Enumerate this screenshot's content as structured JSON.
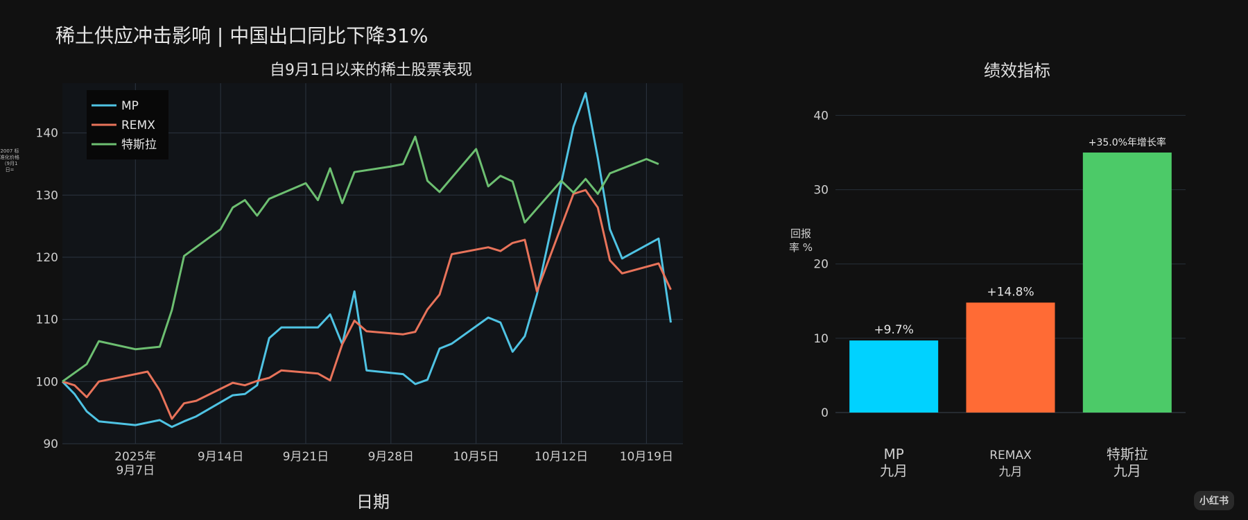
{
  "page": {
    "title": "稀土供应冲击影响 | 中国出口同比下降31%",
    "side_label": "2007 标准化价格（9月1日=",
    "watermark": "小红书"
  },
  "chart_data": [
    {
      "type": "line",
      "title": "自9月1日以来的稀土股票表现",
      "xlabel": "日期",
      "ylabel": "",
      "x_ticks": [
        "2025年\n9月7日",
        "9月14日",
        "9月21日",
        "9月28日",
        "10月5日",
        "10月12日",
        "10月19日"
      ],
      "y_ticks": [
        90,
        100,
        110,
        120,
        130,
        140
      ],
      "ylim": [
        90,
        148
      ],
      "xlim": [
        "2025-09-01",
        "2025-10-22"
      ],
      "grid": true,
      "legend": "top-left",
      "series": [
        {
          "name": "MP",
          "color": "#4fc3e3",
          "points": [
            [
              "2025-09-01",
              100
            ],
            [
              "2025-09-02",
              98
            ],
            [
              "2025-09-03",
              95.2
            ],
            [
              "2025-09-04",
              93.6
            ],
            [
              "2025-09-07",
              93
            ],
            [
              "2025-09-08",
              93.4
            ],
            [
              "2025-09-09",
              93.8
            ],
            [
              "2025-09-10",
              92.7
            ],
            [
              "2025-09-11",
              93.6
            ],
            [
              "2025-09-12",
              94.4
            ],
            [
              "2025-09-15",
              97.8
            ],
            [
              "2025-09-16",
              98
            ],
            [
              "2025-09-17",
              99.4
            ],
            [
              "2025-09-18",
              107
            ],
            [
              "2025-09-19",
              108.7
            ],
            [
              "2025-09-22",
              108.7
            ],
            [
              "2025-09-23",
              110.8
            ],
            [
              "2025-09-24",
              106
            ],
            [
              "2025-09-25",
              114.5
            ],
            [
              "2025-09-26",
              101.8
            ],
            [
              "2025-09-29",
              101.2
            ],
            [
              "2025-09-30",
              99.6
            ],
            [
              "2025-10-01",
              100.3
            ],
            [
              "2025-10-02",
              105.3
            ],
            [
              "2025-10-03",
              106.1
            ],
            [
              "2025-10-06",
              110.3
            ],
            [
              "2025-10-07",
              109.5
            ],
            [
              "2025-10-08",
              104.8
            ],
            [
              "2025-10-09",
              107.3
            ],
            [
              "2025-10-10",
              114
            ],
            [
              "2025-10-13",
              141
            ],
            [
              "2025-10-14",
              146.4
            ],
            [
              "2025-10-15",
              136
            ],
            [
              "2025-10-16",
              124.5
            ],
            [
              "2025-10-17",
              119.8
            ],
            [
              "2025-10-20",
              123
            ],
            [
              "2025-10-21",
              109.5
            ]
          ]
        },
        {
          "name": "REMX",
          "color": "#e8735a",
          "points": [
            [
              "2025-09-01",
              100
            ],
            [
              "2025-09-02",
              99.4
            ],
            [
              "2025-09-03",
              97.5
            ],
            [
              "2025-09-04",
              100
            ],
            [
              "2025-09-05",
              100.4
            ],
            [
              "2025-09-08",
              101.6
            ],
            [
              "2025-09-09",
              98.6
            ],
            [
              "2025-09-10",
              94
            ],
            [
              "2025-09-11",
              96.5
            ],
            [
              "2025-09-12",
              96.9
            ],
            [
              "2025-09-15",
              99.8
            ],
            [
              "2025-09-16",
              99.4
            ],
            [
              "2025-09-17",
              100.1
            ],
            [
              "2025-09-18",
              100.6
            ],
            [
              "2025-09-19",
              101.8
            ],
            [
              "2025-09-22",
              101.3
            ],
            [
              "2025-09-23",
              100.2
            ],
            [
              "2025-09-24",
              106
            ],
            [
              "2025-09-25",
              109.8
            ],
            [
              "2025-09-26",
              108.1
            ],
            [
              "2025-09-29",
              107.6
            ],
            [
              "2025-09-30",
              108
            ],
            [
              "2025-10-01",
              111.6
            ],
            [
              "2025-10-02",
              114
            ],
            [
              "2025-10-03",
              120.5
            ],
            [
              "2025-10-06",
              121.6
            ],
            [
              "2025-10-07",
              121
            ],
            [
              "2025-10-08",
              122.3
            ],
            [
              "2025-10-09",
              122.8
            ],
            [
              "2025-10-10",
              114.5
            ],
            [
              "2025-10-13",
              130.2
            ],
            [
              "2025-10-14",
              130.8
            ],
            [
              "2025-10-15",
              128
            ],
            [
              "2025-10-16",
              119.5
            ],
            [
              "2025-10-17",
              117.4
            ],
            [
              "2025-10-20",
              119
            ],
            [
              "2025-10-21",
              114.8
            ]
          ]
        },
        {
          "name": "特斯拉",
          "color": "#6dbf71",
          "points": [
            [
              "2025-09-01",
              100
            ],
            [
              "2025-09-03",
              102.8
            ],
            [
              "2025-09-04",
              106.5
            ],
            [
              "2025-09-07",
              105.2
            ],
            [
              "2025-09-09",
              105.6
            ],
            [
              "2025-09-10",
              111.5
            ],
            [
              "2025-09-11",
              120.2
            ],
            [
              "2025-09-14",
              124.5
            ],
            [
              "2025-09-15",
              128
            ],
            [
              "2025-09-16",
              129.2
            ],
            [
              "2025-09-17",
              126.7
            ],
            [
              "2025-09-18",
              129.4
            ],
            [
              "2025-09-21",
              131.9
            ],
            [
              "2025-09-22",
              129.2
            ],
            [
              "2025-09-23",
              134.3
            ],
            [
              "2025-09-24",
              128.7
            ],
            [
              "2025-09-25",
              133.7
            ],
            [
              "2025-09-28",
              134.6
            ],
            [
              "2025-09-29",
              135
            ],
            [
              "2025-09-30",
              139.4
            ],
            [
              "2025-10-01",
              132.3
            ],
            [
              "2025-10-02",
              130.5
            ],
            [
              "2025-10-05",
              137.4
            ],
            [
              "2025-10-06",
              131.4
            ],
            [
              "2025-10-07",
              133.1
            ],
            [
              "2025-10-08",
              132.2
            ],
            [
              "2025-10-09",
              125.6
            ],
            [
              "2025-10-12",
              132.3
            ],
            [
              "2025-10-13",
              130.4
            ],
            [
              "2025-10-14",
              132.6
            ],
            [
              "2025-10-15",
              130.2
            ],
            [
              "2025-10-16",
              133.5
            ],
            [
              "2025-10-19",
              135.8
            ],
            [
              "2025-10-20",
              135
            ]
          ]
        }
      ]
    },
    {
      "type": "bar",
      "title": "绩效指标",
      "ylabel": "回报率 %",
      "y_ticks": [
        0,
        10,
        20,
        30,
        40
      ],
      "ylim": [
        0,
        42
      ],
      "grid": true,
      "bars": [
        {
          "category": "MP",
          "sub": "九月",
          "value": 9.7,
          "label": "+9.7%",
          "color": "#00d2ff"
        },
        {
          "category": "REMAX",
          "sub": "九月",
          "value": 14.8,
          "label": "+14.8%",
          "color": "#ff6b35"
        },
        {
          "category": "特斯拉",
          "sub": "九月",
          "value": 35.0,
          "label": "+35.0%年增长率",
          "color": "#4cca68"
        }
      ]
    }
  ]
}
